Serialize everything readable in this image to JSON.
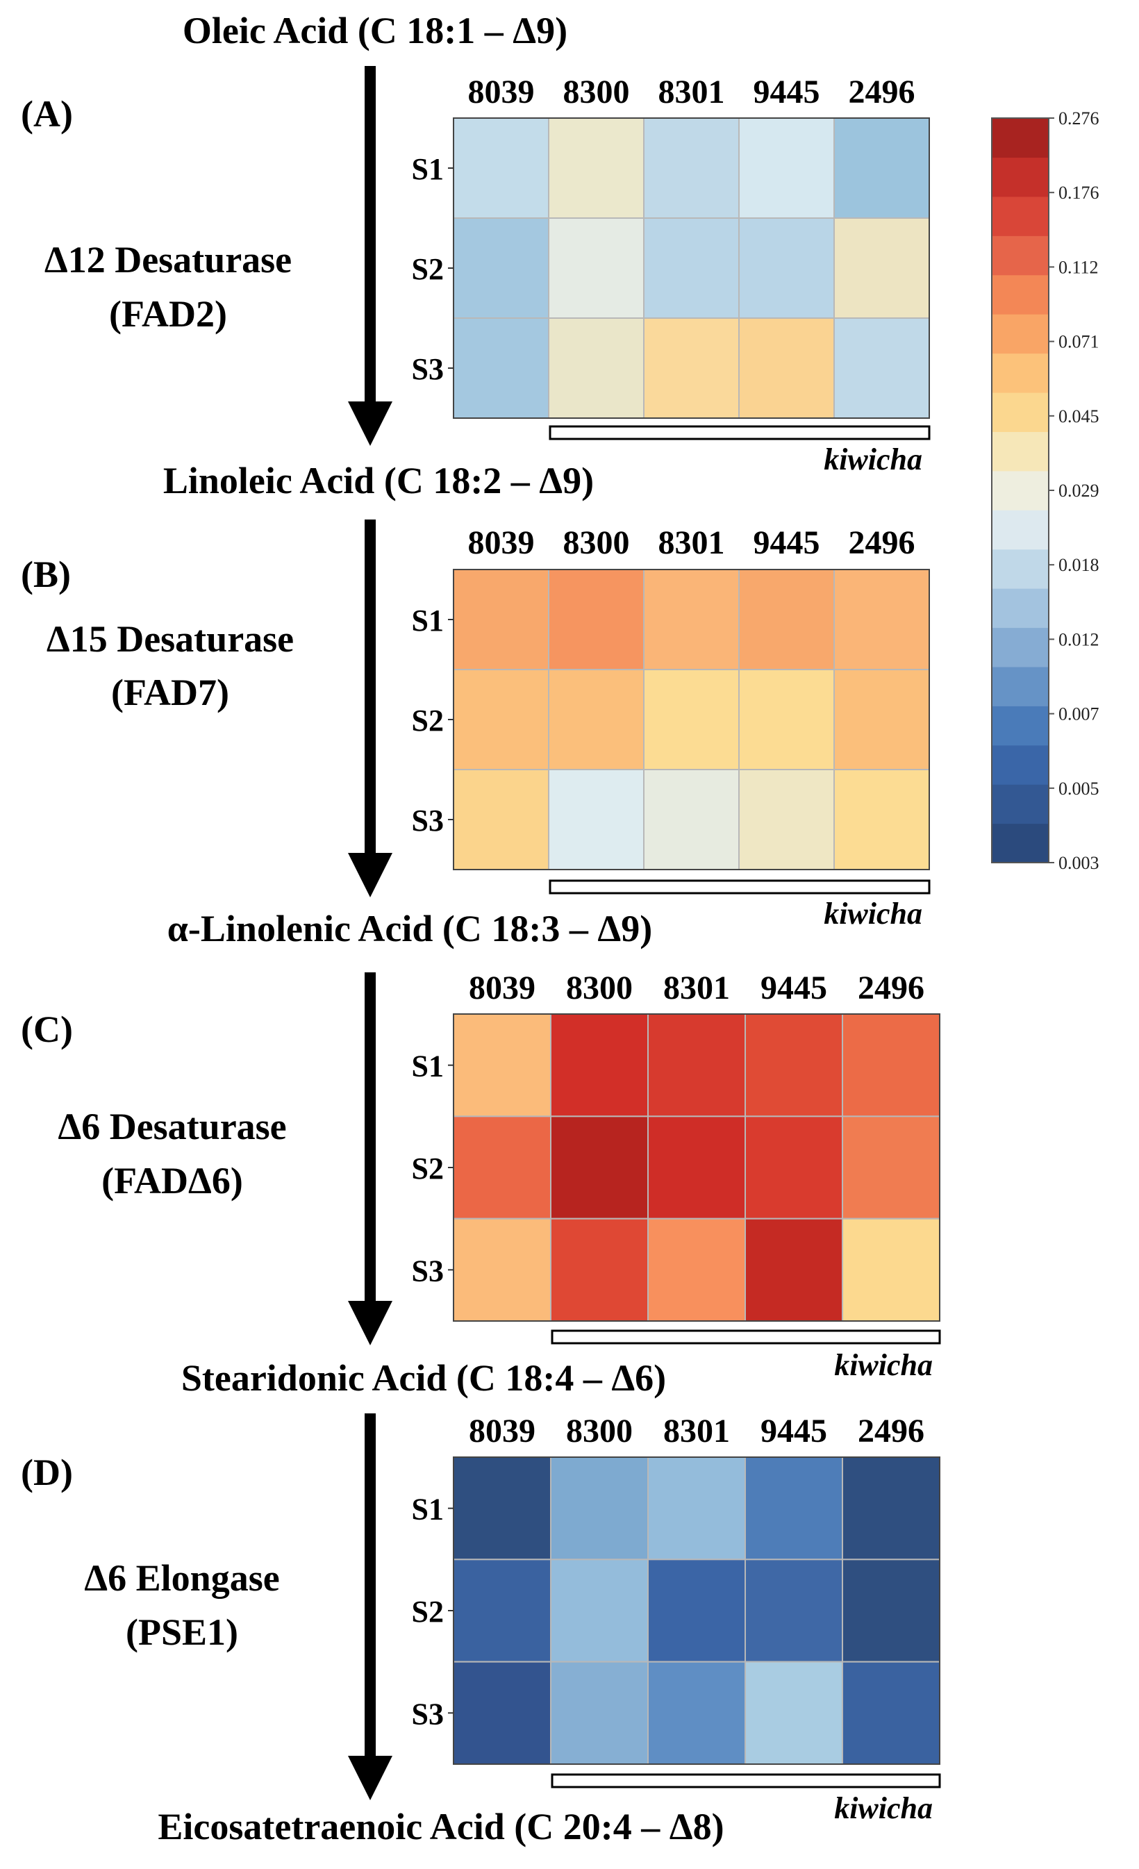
{
  "figure": {
    "compounds": [
      "Oleic Acid (C 18:1 – Δ9)",
      "Linoleic Acid (C 18:2 – Δ9)",
      "α-Linolenic Acid (C 18:3 – Δ9)",
      "Stearidonic Acid (C 18:4 –  Δ6)",
      "Eicosatetraenoic Acid (C 20:4 – Δ8)"
    ],
    "group_label": "kiwicha"
  },
  "colorbar": {
    "tick_labels": [
      "0.276",
      "0.176",
      "0.112",
      "0.071",
      "0.045",
      "0.029",
      "0.018",
      "0.012",
      "0.007",
      "0.005",
      "0.003"
    ],
    "colors": [
      "#2b4a7d",
      "#335893",
      "#3a66a8",
      "#4a7bb9",
      "#6693c6",
      "#86acd3",
      "#a3c3df",
      "#c0d8e8",
      "#dde9ef",
      "#eeeedf",
      "#f6e7b8",
      "#fbd78f",
      "#fcc27a",
      "#f9a566",
      "#f38756",
      "#e6654a",
      "#d94638",
      "#c5302a",
      "#a82320"
    ]
  },
  "chart_data": [
    {
      "type": "heatmap",
      "panel": "(A)",
      "enzyme": [
        "Δ12 Desaturase",
        "(FAD2)"
      ],
      "categories": [
        "8039",
        "8300",
        "8301",
        "9445",
        "2496"
      ],
      "rows": [
        "S1",
        "S2",
        "S3"
      ],
      "values": [
        [
          0.015,
          0.028,
          0.015,
          0.018,
          0.012
        ],
        [
          0.012,
          0.024,
          0.014,
          0.014,
          0.029
        ],
        [
          0.012,
          0.028,
          0.042,
          0.045,
          0.015
        ]
      ],
      "colors": [
        [
          "#c3dcea",
          "#ebe8cc",
          "#c0d9e8",
          "#d6e8f0",
          "#9cc4dd"
        ],
        [
          "#a4c8e0",
          "#e5ebe4",
          "#b9d5e7",
          "#b9d5e7",
          "#ede4c2"
        ],
        [
          "#a4c8e0",
          "#eae6c9",
          "#fad99b",
          "#fad392",
          "#c0d9e8"
        ]
      ],
      "group_label": "kiwicha",
      "vmin": 0.003,
      "vmax": 0.276
    },
    {
      "type": "heatmap",
      "panel": "(B)",
      "enzyme": [
        "Δ15 Desaturase",
        "(FAD7)"
      ],
      "categories": [
        "8039",
        "8300",
        "8301",
        "9445",
        "2496"
      ],
      "rows": [
        "S1",
        "S2",
        "S3"
      ],
      "values": [
        [
          0.065,
          0.075,
          0.058,
          0.065,
          0.058
        ],
        [
          0.054,
          0.054,
          0.04,
          0.04,
          0.054
        ],
        [
          0.045,
          0.02,
          0.024,
          0.029,
          0.04
        ]
      ],
      "colors": [
        [
          "#f8a86c",
          "#f69560",
          "#fab577",
          "#f8a86c",
          "#fab577"
        ],
        [
          "#fbbf7b",
          "#fbbf7b",
          "#fcdc93",
          "#fcdc93",
          "#fbbf7b"
        ],
        [
          "#fbd48c",
          "#deecf0",
          "#e7ebe0",
          "#efe7c4",
          "#fcdc93"
        ]
      ],
      "group_label": "kiwicha",
      "vmin": 0.003,
      "vmax": 0.276
    },
    {
      "type": "heatmap",
      "panel": "(C)",
      "enzyme": [
        "Δ6 Desaturase",
        "(FADΔ6)"
      ],
      "categories": [
        "8039",
        "8300",
        "8301",
        "9445",
        "2496"
      ],
      "rows": [
        "S1",
        "S2",
        "S3"
      ],
      "values": [
        [
          0.054,
          0.176,
          0.15,
          0.128,
          0.095
        ],
        [
          0.1,
          0.23,
          0.176,
          0.15,
          0.09
        ],
        [
          0.054,
          0.13,
          0.08,
          0.2,
          0.045
        ]
      ],
      "colors": [
        [
          "#fbbb7a",
          "#d22f28",
          "#d73a2e",
          "#e04b35",
          "#ec6b47"
        ],
        [
          "#eb6746",
          "#b7241f",
          "#cf2d27",
          "#d93b2e",
          "#f07c51"
        ],
        [
          "#fbbb7a",
          "#df4834",
          "#f8905d",
          "#c52a23",
          "#fcd98f"
        ]
      ],
      "group_label": "kiwicha",
      "vmin": 0.003,
      "vmax": 0.276
    },
    {
      "type": "heatmap",
      "panel": "(D)",
      "enzyme": [
        "Δ6 Elongase",
        "(PSE1)"
      ],
      "categories": [
        "8039",
        "8300",
        "8301",
        "9445",
        "2496"
      ],
      "rows": [
        "S1",
        "S2",
        "S3"
      ],
      "values": [
        [
          0.003,
          0.01,
          0.011,
          0.006,
          0.003
        ],
        [
          0.004,
          0.011,
          0.004,
          0.005,
          0.003
        ],
        [
          0.003,
          0.01,
          0.008,
          0.012,
          0.004
        ]
      ],
      "colors": [
        [
          "#2f4f80",
          "#7eaad0",
          "#94bcdb",
          "#4e7db8",
          "#2f4f80"
        ],
        [
          "#3a62a0",
          "#94bcdb",
          "#3b65a6",
          "#3f68a6",
          "#2f4f80"
        ],
        [
          "#33548f",
          "#86afd3",
          "#5f8ec4",
          "#a9cce2",
          "#3a62a0"
        ]
      ],
      "group_label": "kiwicha",
      "vmin": 0.003,
      "vmax": 0.276
    }
  ]
}
